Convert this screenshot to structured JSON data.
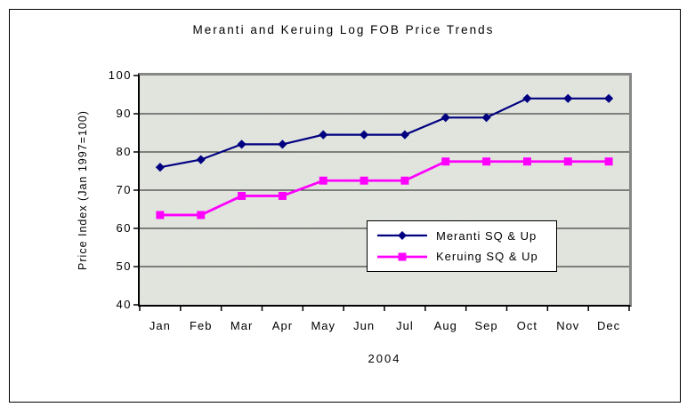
{
  "chart": {
    "title": "Meranti and Keruing Log FOB Price Trends",
    "y_axis_title": "Price Index (Jan 1997=100)",
    "x_axis_title": "2004"
  },
  "chart_data": {
    "type": "line",
    "title": "Meranti and Keruing Log FOB Price Trends",
    "xlabel": "2004",
    "ylabel": "Price Index (Jan 1997=100)",
    "categories": [
      "Jan",
      "Feb",
      "Mar",
      "Apr",
      "May",
      "Jun",
      "Jul",
      "Aug",
      "Sep",
      "Oct",
      "Nov",
      "Dec"
    ],
    "series": [
      {
        "name": "Meranti SQ & Up",
        "color": "#000080",
        "marker": "diamond",
        "values": [
          76,
          78,
          82,
          82,
          84.5,
          84.5,
          84.5,
          89,
          89,
          94,
          94,
          94
        ]
      },
      {
        "name": "Keruing SQ & Up",
        "color": "#FF00FF",
        "marker": "square",
        "values": [
          63.5,
          63.5,
          68.5,
          68.5,
          72.5,
          72.5,
          72.5,
          77.5,
          77.5,
          77.5,
          77.5,
          77.5
        ]
      }
    ],
    "ylim": [
      40,
      100
    ],
    "ytick_step": 10,
    "grid": "horizontal",
    "gridline_color": "#1a1a1a",
    "legend_position": "inside-center-right",
    "plot_bg": "#eceee9"
  }
}
